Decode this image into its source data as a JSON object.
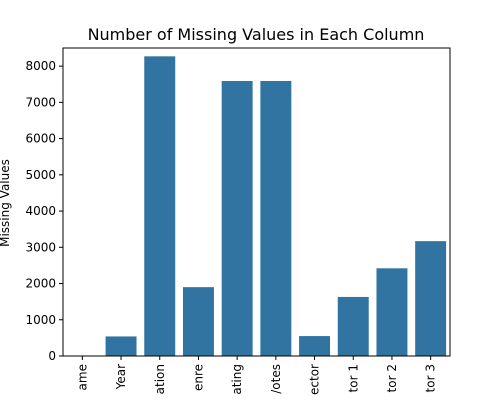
{
  "chart_data": {
    "type": "bar",
    "title": "Number of Missing Values in Each Column",
    "xlabel": "",
    "ylabel": "Missing Values",
    "ylim": [
      0,
      8500
    ],
    "yticks": [
      0,
      1000,
      2000,
      3000,
      4000,
      5000,
      6000,
      7000,
      8000
    ],
    "grid": false,
    "categories": [
      "ame",
      "Year",
      "ation",
      "enre",
      "ating",
      "/otes",
      "ector",
      "tor 1",
      "tor 2",
      "tor 3"
    ],
    "values": [
      0,
      540,
      8270,
      1900,
      7590,
      7590,
      550,
      1630,
      2420,
      3170
    ],
    "bar_color": "#3274a1"
  }
}
